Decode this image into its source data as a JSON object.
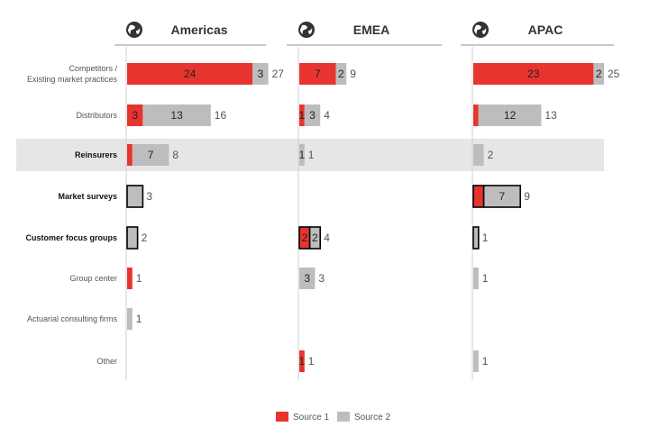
{
  "chart_data": {
    "type": "bar",
    "orientation": "horizontal",
    "stacked": true,
    "panels": [
      "Americas",
      "EMEA",
      "APAC"
    ],
    "categories": [
      "Competitors /\nExisting market practices",
      "Distributors",
      "Reinsurers",
      "Market surveys",
      "Customer focus groups",
      "Group center",
      "Actuarial consulting firms",
      "Other"
    ],
    "bold_categories": [
      "Reinsurers",
      "Market surveys",
      "Customer focus groups"
    ],
    "highlighted_category": "Reinsurers",
    "series": [
      {
        "name": "Source 1",
        "color": "#e8342f",
        "values": {
          "Americas": [
            24,
            3,
            1,
            0,
            0,
            1,
            0,
            0
          ],
          "EMEA": [
            7,
            1,
            0,
            0,
            2,
            0,
            0,
            1
          ],
          "APAC": [
            23,
            1,
            0,
            2,
            0,
            0,
            0,
            0
          ]
        }
      },
      {
        "name": "Source 2",
        "color": "#bdbdbd",
        "values": {
          "Americas": [
            3,
            13,
            7,
            3,
            2,
            0,
            1,
            0
          ],
          "EMEA": [
            2,
            3,
            1,
            0,
            2,
            3,
            0,
            0
          ],
          "APAC": [
            2,
            12,
            2,
            7,
            1,
            1,
            0,
            1
          ]
        }
      }
    ],
    "totals": {
      "Americas": [
        27,
        16,
        8,
        3,
        2,
        1,
        1,
        null
      ],
      "EMEA": [
        9,
        4,
        1,
        null,
        4,
        3,
        null,
        1
      ],
      "APAC": [
        25,
        13,
        2,
        9,
        1,
        1,
        null,
        1
      ]
    },
    "segment_labels": {
      "Americas": [
        [
          "24",
          "3"
        ],
        [
          "3",
          "13"
        ],
        [
          "",
          "7"
        ],
        [
          "",
          ""
        ],
        [
          "",
          ""
        ],
        [
          "",
          ""
        ],
        [
          "",
          ""
        ],
        [
          "",
          ""
        ]
      ],
      "EMEA": [
        [
          "7",
          "2"
        ],
        [
          "1",
          "3"
        ],
        [
          "",
          "1"
        ],
        [
          "",
          ""
        ],
        [
          "2",
          "2"
        ],
        [
          "",
          "3"
        ],
        [
          "",
          ""
        ],
        [
          "1",
          ""
        ]
      ],
      "APAC": [
        [
          "23",
          "2"
        ],
        [
          "",
          "12"
        ],
        [
          "",
          ""
        ],
        [
          "",
          "7"
        ],
        [
          "",
          ""
        ],
        [
          "",
          ""
        ],
        [
          "",
          ""
        ],
        [
          "",
          ""
        ]
      ]
    },
    "total_labels": {
      "Americas": [
        "27",
        "16",
        "8",
        "3",
        "2",
        "1",
        "1",
        ""
      ],
      "EMEA": [
        "9",
        "4",
        "1",
        "",
        "4",
        "3",
        "",
        "1"
      ],
      "APAC": [
        "25",
        "13",
        "2",
        "9",
        "1",
        "1",
        "",
        "1"
      ]
    },
    "outlined": {
      "Americas": [
        false,
        false,
        false,
        true,
        true,
        false,
        false,
        false
      ],
      "EMEA": [
        false,
        false,
        false,
        false,
        true,
        false,
        false,
        false
      ],
      "APAC": [
        false,
        false,
        false,
        true,
        true,
        false,
        false,
        false
      ]
    },
    "x_max": 27,
    "legend": {
      "position": "bottom-center",
      "entries": [
        "Source 1",
        "Source 2"
      ]
    },
    "grid": false,
    "icons": [
      "globe-americas-icon",
      "globe-emea-icon",
      "globe-apac-icon"
    ],
    "colors": {
      "highlight_band": "#e6e6e6",
      "panel_line": "#a8a8a8",
      "outline": "#000000"
    }
  }
}
